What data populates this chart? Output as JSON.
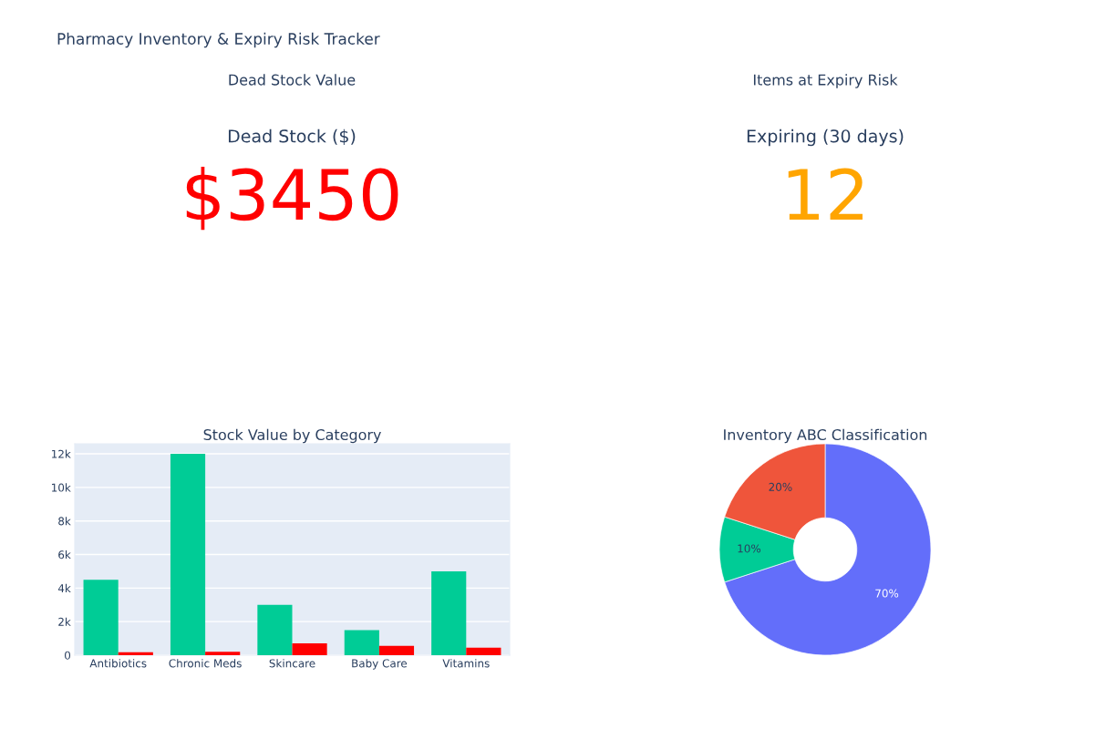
{
  "chart_data": [
    {
      "type": "other",
      "title": "Pharmacy Inventory & Expiry Risk Tracker"
    },
    {
      "type": "other",
      "title": "Dead Stock Value",
      "subtitle": "Dead Stock ($)",
      "annotations": [
        "$3450"
      ],
      "color": "#ff0000"
    },
    {
      "type": "other",
      "title": "Items at Expiry Risk",
      "subtitle": "Expiring (30 days)",
      "annotations": [
        "12"
      ],
      "color": "#ffa500"
    },
    {
      "type": "bar",
      "title": "Stock Value by Category",
      "categories": [
        "Antibiotics",
        "Chronic Meds",
        "Skincare",
        "Baby Care",
        "Vitamins"
      ],
      "series": [
        {
          "color": "#00cc96",
          "values": [
            4500,
            12000,
            3000,
            1500,
            5000
          ]
        },
        {
          "color": "#ff0000",
          "values": [
            180,
            200,
            700,
            550,
            450
          ]
        }
      ],
      "ylim": [
        0,
        12600
      ],
      "yticks": [
        0,
        {
          "value": 2000,
          "label": "2k"
        },
        {
          "value": 4000,
          "label": "4k"
        },
        {
          "value": 6000,
          "label": "6k"
        },
        {
          "value": 8000,
          "label": "8k"
        },
        {
          "value": 10000,
          "label": "10k"
        },
        {
          "value": 12000,
          "label": "12k"
        }
      ],
      "grid": "y"
    },
    {
      "type": "donut",
      "title": "Inventory ABC Classification",
      "categories": [
        null,
        null,
        null
      ],
      "values": [
        70,
        10,
        20
      ],
      "colors": [
        "#636efa",
        "#00cc96",
        "#ef553b"
      ],
      "value_labels": [
        "70%",
        "10%",
        "20%"
      ]
    }
  ]
}
